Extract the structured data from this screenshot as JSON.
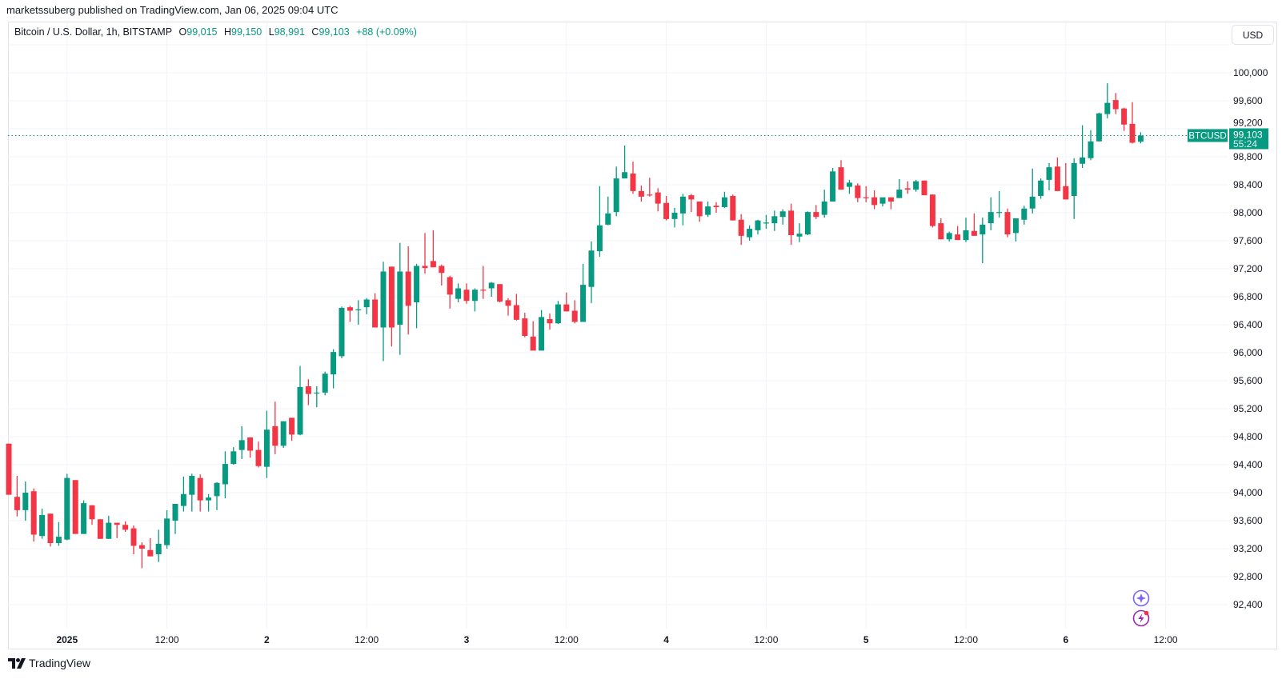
{
  "header": {
    "publisher_line": "marketssuberg published on TradingView.com, Jan 06, 2025 09:04 UTC"
  },
  "legend": {
    "symbol": "Bitcoin / U.S. Dollar, 1h, BITSTAMP",
    "open_label": "O",
    "open": "99,015",
    "high_label": "H",
    "high": "99,150",
    "low_label": "L",
    "low": "98,991",
    "close_label": "C",
    "close": "99,103",
    "change": "+88 (+0.09%)"
  },
  "currency_button": "USD",
  "last_price_tag": {
    "symbol": "BTCUSD",
    "price": "99,103",
    "countdown": "55:24",
    "value": 99103
  },
  "brand": "TradingView",
  "icons": {
    "top": "sparkle-icon",
    "bottom": "lightning-icon"
  },
  "colors": {
    "up": "#089981",
    "down": "#F23645",
    "grid": "#f0f3fa",
    "assistant": "#7b61ff",
    "alerts": "#9c27b0"
  },
  "chart_data": {
    "type": "candlestick",
    "interval": "1h",
    "ylim": [
      92100,
      100700
    ],
    "grid": true,
    "y_ticks": [
      {
        "value": 100000,
        "label": "100,000"
      },
      {
        "value": 99600,
        "label": "99,600"
      },
      {
        "value": 99200,
        "label": "99,200"
      },
      {
        "value": 98800,
        "label": "98,800"
      },
      {
        "value": 98400,
        "label": "98,400"
      },
      {
        "value": 98000,
        "label": "98,000"
      },
      {
        "value": 97600,
        "label": "97,600"
      },
      {
        "value": 97200,
        "label": "97,200"
      },
      {
        "value": 96800,
        "label": "96,800"
      },
      {
        "value": 96400,
        "label": "96,400"
      },
      {
        "value": 96000,
        "label": "96,000"
      },
      {
        "value": 95600,
        "label": "95,600"
      },
      {
        "value": 95200,
        "label": "95,200"
      },
      {
        "value": 94800,
        "label": "94,800"
      },
      {
        "value": 94400,
        "label": "94,400"
      },
      {
        "value": 94000,
        "label": "94,000"
      },
      {
        "value": 93600,
        "label": "93,600"
      },
      {
        "value": 93200,
        "label": "93,200"
      },
      {
        "value": 92800,
        "label": "92,800"
      },
      {
        "value": 92400,
        "label": "92,400"
      }
    ],
    "x_ticks": [
      {
        "time": "2025-01-01T00:00",
        "label": "2025"
      },
      {
        "time": "2025-01-01T12:00",
        "label": "12:00"
      },
      {
        "time": "2025-01-02T00:00",
        "label": "2"
      },
      {
        "time": "2025-01-02T12:00",
        "label": "12:00"
      },
      {
        "time": "2025-01-03T00:00",
        "label": "3"
      },
      {
        "time": "2025-01-03T12:00",
        "label": "12:00"
      },
      {
        "time": "2025-01-04T00:00",
        "label": "4"
      },
      {
        "time": "2025-01-04T12:00",
        "label": "12:00"
      },
      {
        "time": "2025-01-05T00:00",
        "label": "5"
      },
      {
        "time": "2025-01-05T12:00",
        "label": "12:00"
      },
      {
        "time": "2025-01-06T00:00",
        "label": "6"
      },
      {
        "time": "2025-01-06T12:00",
        "label": "12:00"
      }
    ],
    "candle_fields": [
      "time",
      "open",
      "high",
      "low",
      "close"
    ],
    "candles": [
      [
        "2024-12-31T17:00",
        94700,
        94700,
        93970,
        93970
      ],
      [
        "2024-12-31T18:00",
        93940,
        94240,
        93660,
        93750
      ],
      [
        "2024-12-31T19:00",
        93750,
        94160,
        93600,
        94000
      ],
      [
        "2024-12-31T20:00",
        94020,
        94060,
        93300,
        93400
      ],
      [
        "2024-12-31T21:00",
        93380,
        93770,
        93340,
        93680
      ],
      [
        "2024-12-31T22:00",
        93700,
        93700,
        93230,
        93280
      ],
      [
        "2024-12-31T23:00",
        93280,
        93580,
        93240,
        93370
      ],
      [
        "2025-01-01T00:00",
        93330,
        94270,
        93320,
        94210
      ],
      [
        "2025-01-01T01:00",
        94180,
        94180,
        93410,
        93410
      ],
      [
        "2025-01-01T02:00",
        93410,
        93890,
        93410,
        93850
      ],
      [
        "2025-01-01T03:00",
        93820,
        93820,
        93540,
        93620
      ],
      [
        "2025-01-01T04:00",
        93620,
        93620,
        93340,
        93340
      ],
      [
        "2025-01-01T05:00",
        93340,
        93670,
        93340,
        93570
      ],
      [
        "2025-01-01T06:00",
        93570,
        93570,
        93350,
        93540
      ],
      [
        "2025-01-01T07:00",
        93540,
        93590,
        93440,
        93470
      ],
      [
        "2025-01-01T08:00",
        93490,
        93530,
        93120,
        93240
      ],
      [
        "2025-01-01T09:00",
        93250,
        93290,
        92920,
        93200
      ],
      [
        "2025-01-01T10:00",
        93180,
        93350,
        93090,
        93090
      ],
      [
        "2025-01-01T11:00",
        93120,
        93470,
        93010,
        93270
      ],
      [
        "2025-01-01T12:00",
        93250,
        93750,
        93200,
        93630
      ],
      [
        "2025-01-01T13:00",
        93600,
        93840,
        93410,
        93840
      ],
      [
        "2025-01-01T14:00",
        93810,
        94230,
        93730,
        93980
      ],
      [
        "2025-01-01T15:00",
        93970,
        94270,
        93730,
        94240
      ],
      [
        "2025-01-01T16:00",
        94210,
        94260,
        93730,
        93890
      ],
      [
        "2025-01-01T17:00",
        93890,
        93980,
        93730,
        93930
      ],
      [
        "2025-01-01T18:00",
        93950,
        94150,
        93750,
        94140
      ],
      [
        "2025-01-01T19:00",
        94120,
        94590,
        93920,
        94410
      ],
      [
        "2025-01-01T20:00",
        94410,
        94650,
        94400,
        94590
      ],
      [
        "2025-01-01T21:00",
        94610,
        94950,
        94480,
        94750
      ],
      [
        "2025-01-01T22:00",
        94790,
        94790,
        94500,
        94600
      ],
      [
        "2025-01-01T23:00",
        94610,
        94730,
        94360,
        94380
      ],
      [
        "2025-01-02T00:00",
        94370,
        95170,
        94210,
        94900
      ],
      [
        "2025-01-02T01:00",
        94950,
        95300,
        94550,
        94670
      ],
      [
        "2025-01-02T02:00",
        94670,
        95020,
        94640,
        95020
      ],
      [
        "2025-01-02T03:00",
        95070,
        95070,
        94740,
        94830
      ],
      [
        "2025-01-02T04:00",
        94830,
        95810,
        94820,
        95510
      ],
      [
        "2025-01-02T05:00",
        95520,
        95620,
        95250,
        95410
      ],
      [
        "2025-01-02T06:00",
        95420,
        95520,
        95220,
        95430
      ],
      [
        "2025-01-02T07:00",
        95430,
        95730,
        95390,
        95700
      ],
      [
        "2025-01-02T08:00",
        95690,
        96050,
        95490,
        96010
      ],
      [
        "2025-01-02T09:00",
        95950,
        96660,
        95920,
        96640
      ],
      [
        "2025-01-02T10:00",
        96650,
        96670,
        96440,
        96600
      ],
      [
        "2025-01-02T11:00",
        96610,
        96750,
        96400,
        96620
      ],
      [
        "2025-01-02T12:00",
        96650,
        96780,
        96550,
        96760
      ],
      [
        "2025-01-02T13:00",
        96760,
        96850,
        96360,
        96360
      ],
      [
        "2025-01-02T14:00",
        96360,
        97300,
        95880,
        97160
      ],
      [
        "2025-01-02T15:00",
        97230,
        97230,
        96090,
        96360
      ],
      [
        "2025-01-02T16:00",
        96400,
        97570,
        95970,
        97160
      ],
      [
        "2025-01-02T17:00",
        97160,
        97520,
        96260,
        96670
      ],
      [
        "2025-01-02T18:00",
        96720,
        97270,
        96350,
        97240
      ],
      [
        "2025-01-02T19:00",
        97240,
        97710,
        97130,
        97210
      ],
      [
        "2025-01-02T20:00",
        97310,
        97750,
        97220,
        97220
      ],
      [
        "2025-01-02T21:00",
        97240,
        97260,
        96960,
        97140
      ],
      [
        "2025-01-02T22:00",
        97080,
        97100,
        96630,
        96830
      ],
      [
        "2025-01-02T23:00",
        96770,
        96990,
        96720,
        96920
      ],
      [
        "2025-01-03T00:00",
        96900,
        96990,
        96700,
        96740
      ],
      [
        "2025-01-03T01:00",
        96740,
        96920,
        96590,
        96900
      ],
      [
        "2025-01-03T02:00",
        96900,
        97240,
        96770,
        96890
      ],
      [
        "2025-01-03T03:00",
        96920,
        97010,
        96800,
        97000
      ],
      [
        "2025-01-03T04:00",
        96980,
        96980,
        96720,
        96730
      ],
      [
        "2025-01-03T05:00",
        96750,
        96780,
        96530,
        96670
      ],
      [
        "2025-01-03T06:00",
        96680,
        96840,
        96460,
        96470
      ],
      [
        "2025-01-03T07:00",
        96490,
        96570,
        96220,
        96240
      ],
      [
        "2025-01-03T08:00",
        96230,
        96450,
        96030,
        96030
      ],
      [
        "2025-01-03T09:00",
        96030,
        96610,
        96030,
        96510
      ],
      [
        "2025-01-03T10:00",
        96480,
        96560,
        96330,
        96420
      ],
      [
        "2025-01-03T11:00",
        96420,
        96740,
        96410,
        96690
      ],
      [
        "2025-01-03T12:00",
        96690,
        96860,
        96590,
        96590
      ],
      [
        "2025-01-03T13:00",
        96600,
        96750,
        96420,
        96440
      ],
      [
        "2025-01-03T14:00",
        96440,
        97270,
        96440,
        96970
      ],
      [
        "2025-01-03T15:00",
        96940,
        97590,
        96710,
        97460
      ],
      [
        "2025-01-03T16:00",
        97450,
        98380,
        97370,
        97820
      ],
      [
        "2025-01-03T17:00",
        97830,
        98230,
        97820,
        97990
      ],
      [
        "2025-01-03T18:00",
        98010,
        98660,
        97950,
        98490
      ],
      [
        "2025-01-03T19:00",
        98490,
        98960,
        98490,
        98580
      ],
      [
        "2025-01-03T20:00",
        98560,
        98730,
        98270,
        98310
      ],
      [
        "2025-01-03T21:00",
        98310,
        98390,
        98160,
        98230
      ],
      [
        "2025-01-03T22:00",
        98260,
        98500,
        98230,
        98250
      ],
      [
        "2025-01-03T23:00",
        98290,
        98350,
        98020,
        98130
      ],
      [
        "2025-01-04T00:00",
        98140,
        98240,
        97890,
        97910
      ],
      [
        "2025-01-04T01:00",
        97910,
        98070,
        97790,
        98000
      ],
      [
        "2025-01-04T02:00",
        97990,
        98270,
        97820,
        98230
      ],
      [
        "2025-01-04T03:00",
        98250,
        98270,
        98010,
        98190
      ],
      [
        "2025-01-04T04:00",
        98160,
        98160,
        97870,
        97950
      ],
      [
        "2025-01-04T05:00",
        97970,
        98160,
        97940,
        98090
      ],
      [
        "2025-01-04T06:00",
        98100,
        98150,
        98000,
        98080
      ],
      [
        "2025-01-04T07:00",
        98080,
        98300,
        98070,
        98220
      ],
      [
        "2025-01-04T08:00",
        98240,
        98260,
        97890,
        97890
      ],
      [
        "2025-01-04T09:00",
        97900,
        97980,
        97540,
        97670
      ],
      [
        "2025-01-04T10:00",
        97650,
        97820,
        97600,
        97770
      ],
      [
        "2025-01-04T11:00",
        97750,
        97900,
        97690,
        97890
      ],
      [
        "2025-01-04T12:00",
        97860,
        97970,
        97770,
        97860
      ],
      [
        "2025-01-04T13:00",
        97850,
        98030,
        97740,
        97950
      ],
      [
        "2025-01-04T14:00",
        97940,
        98050,
        97830,
        98020
      ],
      [
        "2025-01-04T15:00",
        98030,
        98130,
        97540,
        97680
      ],
      [
        "2025-01-04T16:00",
        97660,
        97850,
        97580,
        97700
      ],
      [
        "2025-01-04T17:00",
        97690,
        98020,
        97680,
        98010
      ],
      [
        "2025-01-04T18:00",
        98010,
        98110,
        97910,
        97940
      ],
      [
        "2025-01-04T19:00",
        97970,
        98330,
        97930,
        98160
      ],
      [
        "2025-01-04T20:00",
        98160,
        98640,
        98160,
        98590
      ],
      [
        "2025-01-04T21:00",
        98650,
        98750,
        98330,
        98330
      ],
      [
        "2025-01-04T22:00",
        98370,
        98470,
        98270,
        98430
      ],
      [
        "2025-01-04T23:00",
        98390,
        98420,
        98150,
        98210
      ],
      [
        "2025-01-05T00:00",
        98220,
        98380,
        98150,
        98210
      ],
      [
        "2025-01-05T01:00",
        98220,
        98320,
        98050,
        98110
      ],
      [
        "2025-01-05T02:00",
        98130,
        98220,
        98090,
        98220
      ],
      [
        "2025-01-05T03:00",
        98220,
        98220,
        98050,
        98160
      ],
      [
        "2025-01-05T04:00",
        98210,
        98480,
        98210,
        98330
      ],
      [
        "2025-01-05T05:00",
        98350,
        98450,
        98270,
        98330
      ],
      [
        "2025-01-05T06:00",
        98330,
        98470,
        98300,
        98450
      ],
      [
        "2025-01-05T07:00",
        98460,
        98460,
        98250,
        98250
      ],
      [
        "2025-01-05T08:00",
        98260,
        98260,
        97790,
        97810
      ],
      [
        "2025-01-05T09:00",
        97850,
        97920,
        97620,
        97620
      ],
      [
        "2025-01-05T10:00",
        97620,
        97730,
        97590,
        97710
      ],
      [
        "2025-01-05T11:00",
        97690,
        97810,
        97610,
        97610
      ],
      [
        "2025-01-05T12:00",
        97610,
        97930,
        97580,
        97750
      ],
      [
        "2025-01-05T13:00",
        97740,
        97990,
        97670,
        97670
      ],
      [
        "2025-01-05T14:00",
        97690,
        97930,
        97280,
        97830
      ],
      [
        "2025-01-05T15:00",
        97850,
        98220,
        97750,
        98010
      ],
      [
        "2025-01-05T16:00",
        98000,
        98310,
        97930,
        98010
      ],
      [
        "2025-01-05T17:00",
        98010,
        98060,
        97650,
        97690
      ],
      [
        "2025-01-05T18:00",
        97710,
        97920,
        97590,
        97920
      ],
      [
        "2025-01-05T19:00",
        97900,
        98100,
        97830,
        98060
      ],
      [
        "2025-01-05T20:00",
        98060,
        98630,
        97990,
        98230
      ],
      [
        "2025-01-05T21:00",
        98240,
        98490,
        98200,
        98460
      ],
      [
        "2025-01-05T22:00",
        98470,
        98710,
        98320,
        98650
      ],
      [
        "2025-01-05T23:00",
        98660,
        98790,
        98310,
        98310
      ],
      [
        "2025-01-06T00:00",
        98380,
        98710,
        98190,
        98190
      ],
      [
        "2025-01-06T01:00",
        98240,
        98780,
        97910,
        98710
      ],
      [
        "2025-01-06T02:00",
        98700,
        99250,
        98640,
        98790
      ],
      [
        "2025-01-06T03:00",
        98780,
        99180,
        98750,
        99020
      ],
      [
        "2025-01-06T04:00",
        99020,
        99430,
        99020,
        99420
      ],
      [
        "2025-01-06T05:00",
        99410,
        99850,
        99350,
        99570
      ],
      [
        "2025-01-06T06:00",
        99610,
        99710,
        99410,
        99480
      ],
      [
        "2025-01-06T07:00",
        99490,
        99500,
        99170,
        99260
      ],
      [
        "2025-01-06T08:00",
        99270,
        99580,
        98990,
        99000
      ],
      [
        "2025-01-06T09:00",
        99015,
        99150,
        98991,
        99103
      ]
    ]
  }
}
